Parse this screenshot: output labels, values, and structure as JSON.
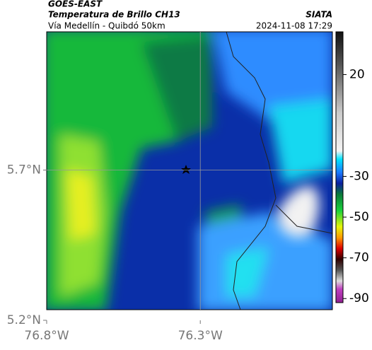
{
  "header": {
    "title": "GOES-EAST",
    "subtitle": "Temperatura de Brillo CH13",
    "region": "Vía Medellín - Quibdó 50km",
    "source": "SIATA",
    "timestamp": "2024-11-08 17:29"
  },
  "map": {
    "xlim": [
      -76.8,
      -75.87
    ],
    "ylim": [
      5.2,
      6.16
    ],
    "xticks": [
      {
        "value": -76.8,
        "label": "76.8°W"
      },
      {
        "value": -76.3,
        "label": "76.3°W"
      }
    ],
    "yticks": [
      {
        "value": 5.2,
        "label": "5.2°N"
      },
      {
        "value": 5.7,
        "label": "5.7°N"
      }
    ],
    "grid": true
  },
  "colorbar": {
    "clim": [
      -92,
      41
    ],
    "ticks": [
      20,
      -30,
      -50,
      -70,
      -90
    ]
  }
}
